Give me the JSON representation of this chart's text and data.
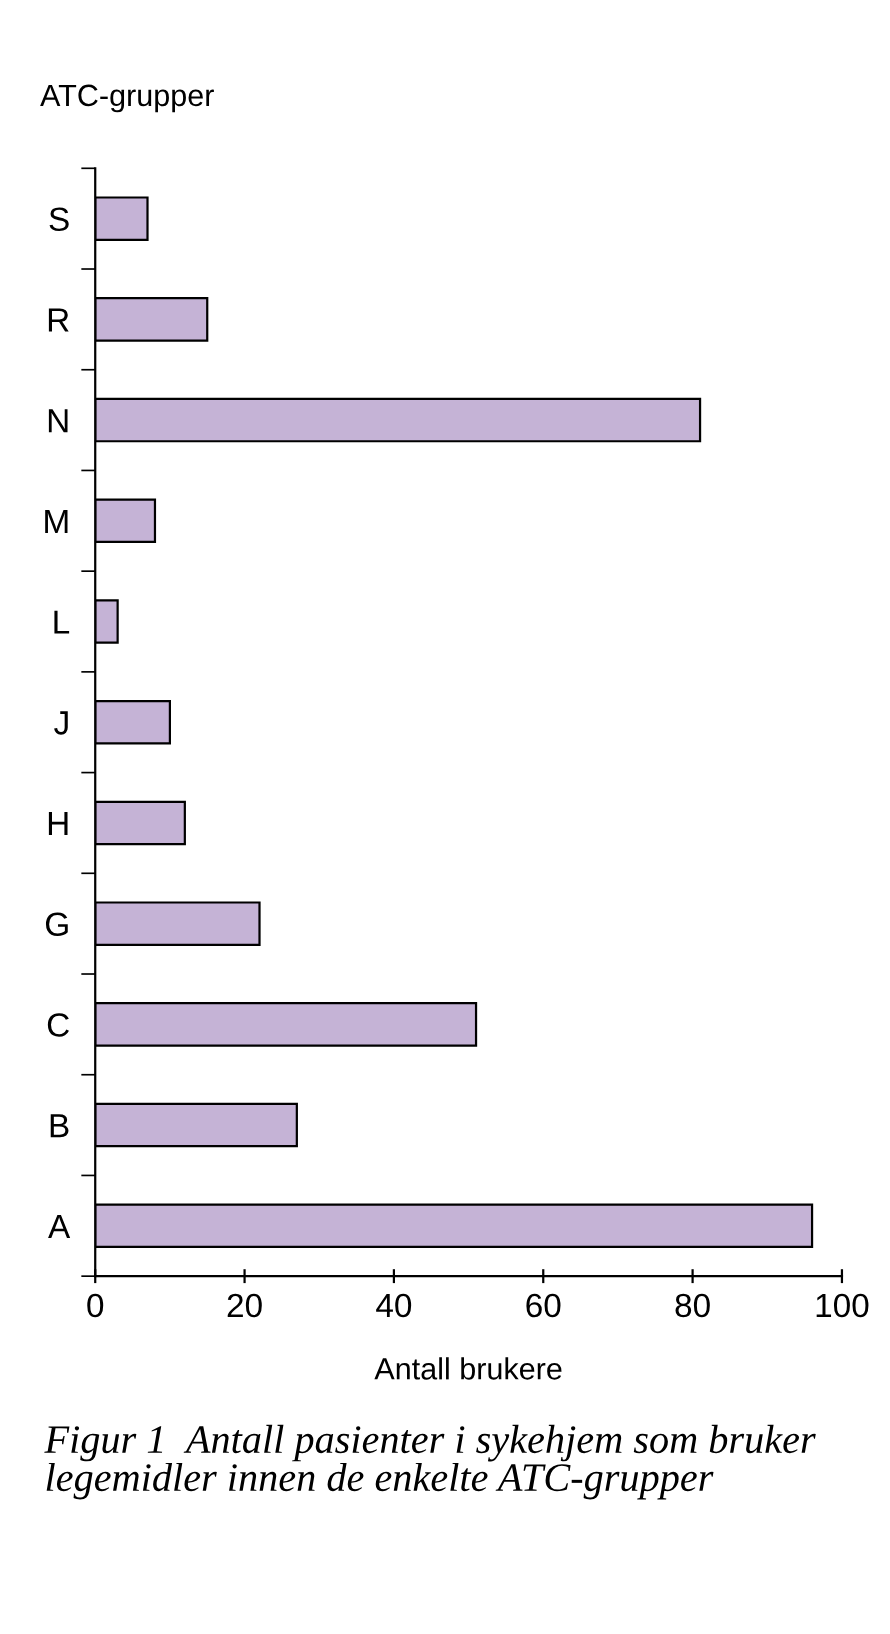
{
  "chart_data": {
    "type": "bar",
    "orientation": "horizontal",
    "ylabel": "ATC-grupper",
    "xlabel": "Antall brukere",
    "categories": [
      "S",
      "R",
      "N",
      "M",
      "L",
      "J",
      "H",
      "G",
      "C",
      "B",
      "A"
    ],
    "values": [
      7,
      15,
      81,
      8,
      3,
      10,
      12,
      22,
      51,
      27,
      96
    ],
    "color": "#c5b3d6",
    "xlim": [
      0,
      100
    ],
    "xticks": [
      0,
      20,
      40,
      60,
      80,
      100
    ],
    "grid": false,
    "legend": false,
    "annotations": [
      "Figur 1  Antall pasienter i sykehjem som bruker legemidler innen de enkelte ATC-grupper"
    ]
  }
}
